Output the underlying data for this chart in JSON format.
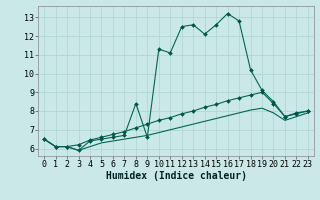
{
  "bg_color": "#cbe8e8",
  "grid_color": "#b0d8d0",
  "line_color": "#006655",
  "marker_color": "#005544",
  "xlabel": "Humidex (Indice chaleur)",
  "xlabel_fontsize": 7,
  "tick_fontsize": 6,
  "xlim": [
    -0.5,
    23.5
  ],
  "ylim": [
    5.6,
    13.6
  ],
  "yticks": [
    6,
    7,
    8,
    9,
    10,
    11,
    12,
    13
  ],
  "xticks": [
    0,
    1,
    2,
    3,
    4,
    5,
    6,
    7,
    8,
    9,
    10,
    11,
    12,
    13,
    14,
    15,
    16,
    17,
    18,
    19,
    20,
    21,
    22,
    23
  ],
  "line1_x": [
    0,
    1,
    2,
    3,
    4,
    5,
    6,
    7,
    8,
    9,
    10,
    11,
    12,
    13,
    14,
    15,
    16,
    17,
    18,
    19,
    20,
    21,
    22,
    23
  ],
  "line1_y": [
    6.5,
    6.1,
    6.1,
    5.9,
    6.4,
    6.5,
    6.6,
    6.7,
    8.4,
    6.6,
    11.3,
    11.1,
    12.5,
    12.6,
    12.1,
    12.6,
    13.2,
    12.8,
    10.2,
    9.1,
    8.5,
    7.7,
    7.9,
    8.0
  ],
  "line2_x": [
    0,
    1,
    2,
    3,
    4,
    5,
    6,
    7,
    8,
    9,
    10,
    11,
    12,
    13,
    14,
    15,
    16,
    17,
    18,
    19,
    20,
    21,
    22,
    23
  ],
  "line2_y": [
    6.5,
    6.1,
    6.1,
    6.2,
    6.45,
    6.6,
    6.75,
    6.9,
    7.1,
    7.3,
    7.5,
    7.65,
    7.85,
    8.0,
    8.2,
    8.35,
    8.55,
    8.7,
    8.85,
    9.0,
    8.4,
    7.7,
    7.85,
    8.0
  ],
  "line3_x": [
    0,
    1,
    2,
    3,
    4,
    5,
    6,
    7,
    8,
    9,
    10,
    11,
    12,
    13,
    14,
    15,
    16,
    17,
    18,
    19,
    20,
    21,
    22,
    23
  ],
  "line3_y": [
    6.5,
    6.1,
    6.1,
    5.9,
    6.1,
    6.3,
    6.4,
    6.5,
    6.6,
    6.7,
    6.85,
    7.0,
    7.15,
    7.3,
    7.45,
    7.6,
    7.75,
    7.9,
    8.05,
    8.15,
    7.9,
    7.5,
    7.7,
    7.9
  ]
}
